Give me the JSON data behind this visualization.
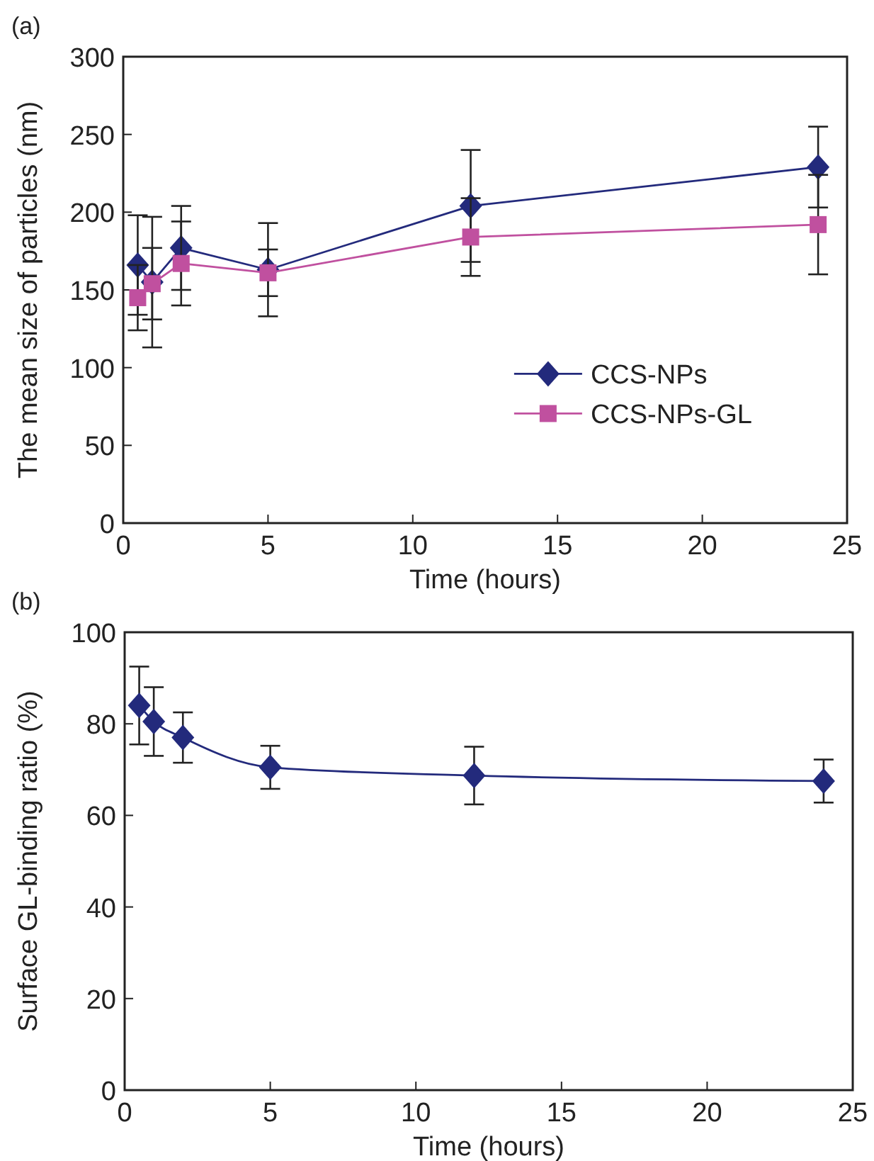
{
  "chart_data": [
    {
      "type": "line",
      "title": "(a)",
      "xlabel": "Time (hours)",
      "ylabel": "The mean size of particles (nm)",
      "xlim": [
        0,
        25
      ],
      "xticks": [
        0,
        5,
        10,
        15,
        20,
        25
      ],
      "ylim": [
        0,
        300
      ],
      "yticks": [
        0,
        50,
        100,
        150,
        200,
        250,
        300
      ],
      "legend": "right",
      "grid": false,
      "series": [
        {
          "name": "CCS-NPs",
          "color": "#232a7c",
          "marker": "diamond",
          "x": [
            0.5,
            1,
            2,
            5,
            12,
            24
          ],
          "values": [
            166,
            155,
            177,
            163,
            204,
            229
          ],
          "errors": [
            32,
            42,
            27,
            30,
            36,
            26
          ]
        },
        {
          "name": "CCS-NPs-GL",
          "color": "#c0509f",
          "marker": "square",
          "x": [
            0.5,
            1,
            2,
            5,
            12,
            24
          ],
          "values": [
            145,
            154,
            167,
            161,
            184,
            192
          ],
          "errors": [
            21,
            23,
            27,
            15,
            25,
            32
          ]
        }
      ]
    },
    {
      "type": "line",
      "title": "(b)",
      "xlabel": "Time (hours)",
      "ylabel": "Surface GL-binding ratio (%)",
      "xlim": [
        0,
        25
      ],
      "xticks": [
        0,
        5,
        10,
        15,
        20,
        25
      ],
      "ylim": [
        0,
        100
      ],
      "yticks": [
        0,
        20,
        40,
        60,
        80,
        100
      ],
      "grid": false,
      "legend": false,
      "series": [
        {
          "color": "#232a7c",
          "marker": "diamond",
          "x": [
            0.5,
            1,
            2,
            5,
            12,
            24
          ],
          "values": [
            84,
            80.5,
            77,
            70.5,
            68.7,
            67.5
          ],
          "errors": [
            8.5,
            7.5,
            5.5,
            4.7,
            6.3,
            4.7
          ]
        }
      ]
    }
  ]
}
